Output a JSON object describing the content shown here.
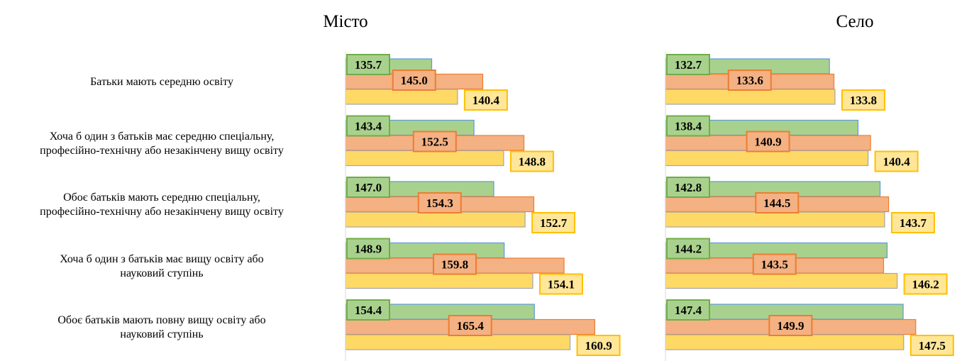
{
  "chart_data": [
    {
      "type": "bar",
      "orientation": "horizontal",
      "title": "Місто",
      "categories": [
        "Батьки мають середню освіту",
        "Хоча б один з батьків має середню спеціальну,\nпрофесійно-технічну або незакінчену вищу освіту",
        "Обоє батьків мають середню спеціальну,\nпрофесійно-технічну або незакінчену вищу освіту",
        "Хоча б один з батьків має вищу освіту або\nнауковий ступінь",
        "Обоє батьків мають повну вищу освіту або\nнауковий ступінь"
      ],
      "xlim": [
        120,
        170
      ],
      "series": [
        {
          "color": "#a9d18e",
          "values": [
            135.7,
            143.4,
            147.0,
            148.9,
            154.4
          ],
          "value_labels": [
            "135.7",
            "143.4",
            "147.0",
            "148.9",
            "154.4"
          ]
        },
        {
          "color": "#f4b183",
          "values": [
            145.0,
            152.5,
            154.3,
            159.8,
            165.4
          ],
          "value_labels": [
            "145.0",
            "152.5",
            "154.3",
            "159.8",
            "165.4"
          ]
        },
        {
          "color": "#ffd966",
          "values": [
            140.4,
            148.8,
            152.7,
            154.1,
            160.9
          ],
          "value_labels": [
            "140.4",
            "148.8",
            "152.7",
            "154.1",
            "160.9"
          ]
        }
      ]
    },
    {
      "type": "bar",
      "orientation": "horizontal",
      "title": "Село",
      "xlim": [
        100,
        158
      ],
      "series": [
        {
          "color": "#a9d18e",
          "values": [
            132.7,
            138.4,
            142.8,
            144.2,
            147.4
          ],
          "value_labels": [
            "132.7",
            "138.4",
            "142.8",
            "144.2",
            "147.4"
          ]
        },
        {
          "color": "#f4b183",
          "values": [
            133.6,
            140.9,
            144.5,
            143.5,
            149.9
          ],
          "value_labels": [
            "133.6",
            "140.9",
            "144.5",
            "143.5",
            "149.9"
          ]
        },
        {
          "color": "#ffd966",
          "values": [
            133.8,
            140.4,
            143.7,
            146.2,
            147.5
          ],
          "value_labels": [
            "133.8",
            "140.4",
            "143.7",
            "146.2",
            "147.5"
          ]
        }
      ]
    }
  ]
}
